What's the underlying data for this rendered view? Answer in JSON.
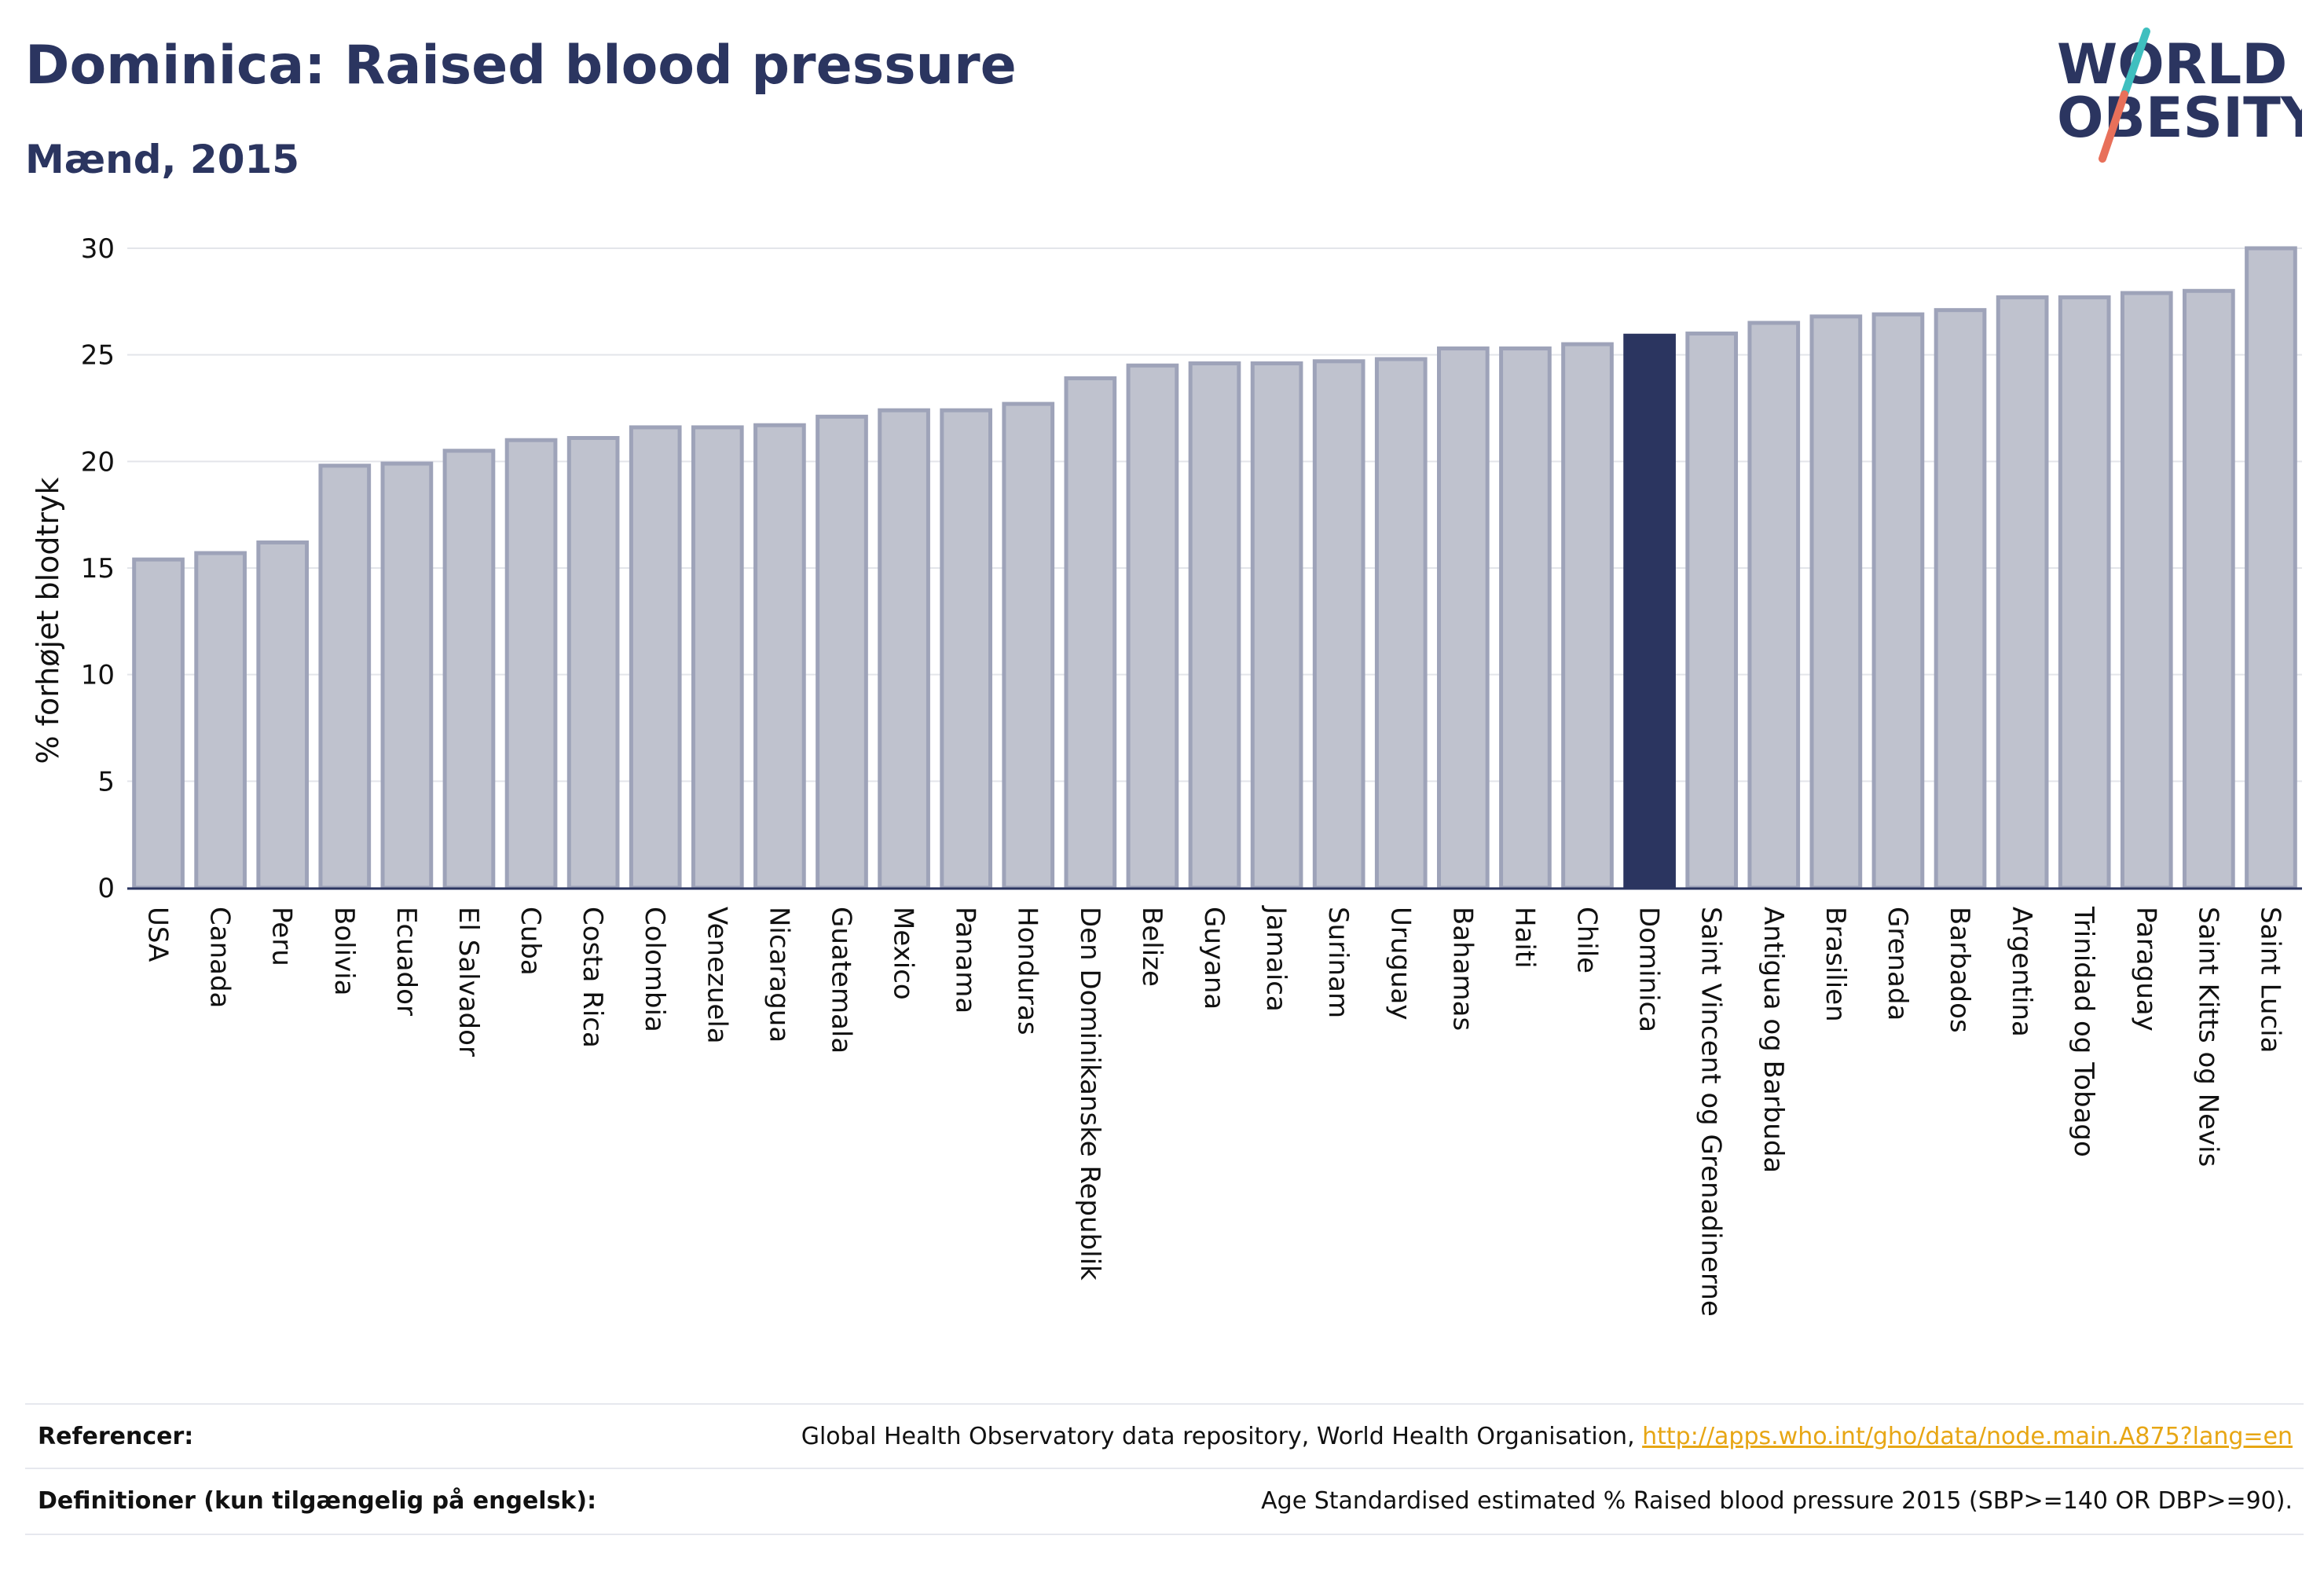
{
  "header": {
    "title": "Dominica: Raised blood pressure",
    "subtitle": "Mænd, 2015"
  },
  "logo": {
    "line1": "WORLD",
    "line2": "OBESITY",
    "colors": {
      "text": "#2b3560",
      "teal": "#3fbfbf",
      "coral": "#e8705a"
    }
  },
  "colors": {
    "bar_fill": "#bfc2ce",
    "bar_stroke": "#9ea3b9",
    "highlight": "#2b3560",
    "grid": "#e3e5ea",
    "axis": "#2b3560"
  },
  "chart_data": {
    "type": "bar",
    "ylabel": "% forhøjet blodtryk",
    "ylim": [
      0,
      30
    ],
    "yticks": [
      0,
      5,
      10,
      15,
      20,
      25,
      30
    ],
    "grid": true,
    "highlight": "Dominica",
    "categories": [
      "USA",
      "Canada",
      "Peru",
      "Bolivia",
      "Ecuador",
      "El Salvador",
      "Cuba",
      "Costa Rica",
      "Colombia",
      "Venezuela",
      "Nicaragua",
      "Guatemala",
      "Mexico",
      "Panama",
      "Honduras",
      "Den Dominikanske Republik",
      "Belize",
      "Guyana",
      "Jamaica",
      "Surinam",
      "Uruguay",
      "Bahamas",
      "Haiti",
      "Chile",
      "Dominica",
      "Saint Vincent og Grenadinerne",
      "Antigua og Barbuda",
      "Brasilien",
      "Grenada",
      "Barbados",
      "Argentina",
      "Trinidad og Tobago",
      "Paraguay",
      "Saint Kitts og Nevis",
      "Saint Lucia"
    ],
    "values": [
      15.4,
      15.7,
      16.2,
      19.8,
      19.9,
      20.5,
      21.0,
      21.1,
      21.6,
      21.6,
      21.7,
      22.1,
      22.4,
      22.4,
      22.7,
      23.9,
      24.5,
      24.6,
      24.6,
      24.7,
      24.8,
      25.3,
      25.3,
      25.5,
      25.9,
      26.0,
      26.5,
      26.8,
      26.9,
      27.1,
      27.7,
      27.7,
      27.9,
      28.0,
      30.0
    ]
  },
  "footer": {
    "references_label": "Referencer:",
    "references_text": "Global Health Observatory data repository, World Health Organisation, ",
    "references_link": "http://apps.who.int/gho/data/node.main.A875?lang=en",
    "definitions_label": "Definitioner (kun tilgængelig på engelsk):",
    "definitions_text": "Age Standardised estimated % Raised blood pressure 2015 (SBP>=140 OR DBP>=90)."
  }
}
